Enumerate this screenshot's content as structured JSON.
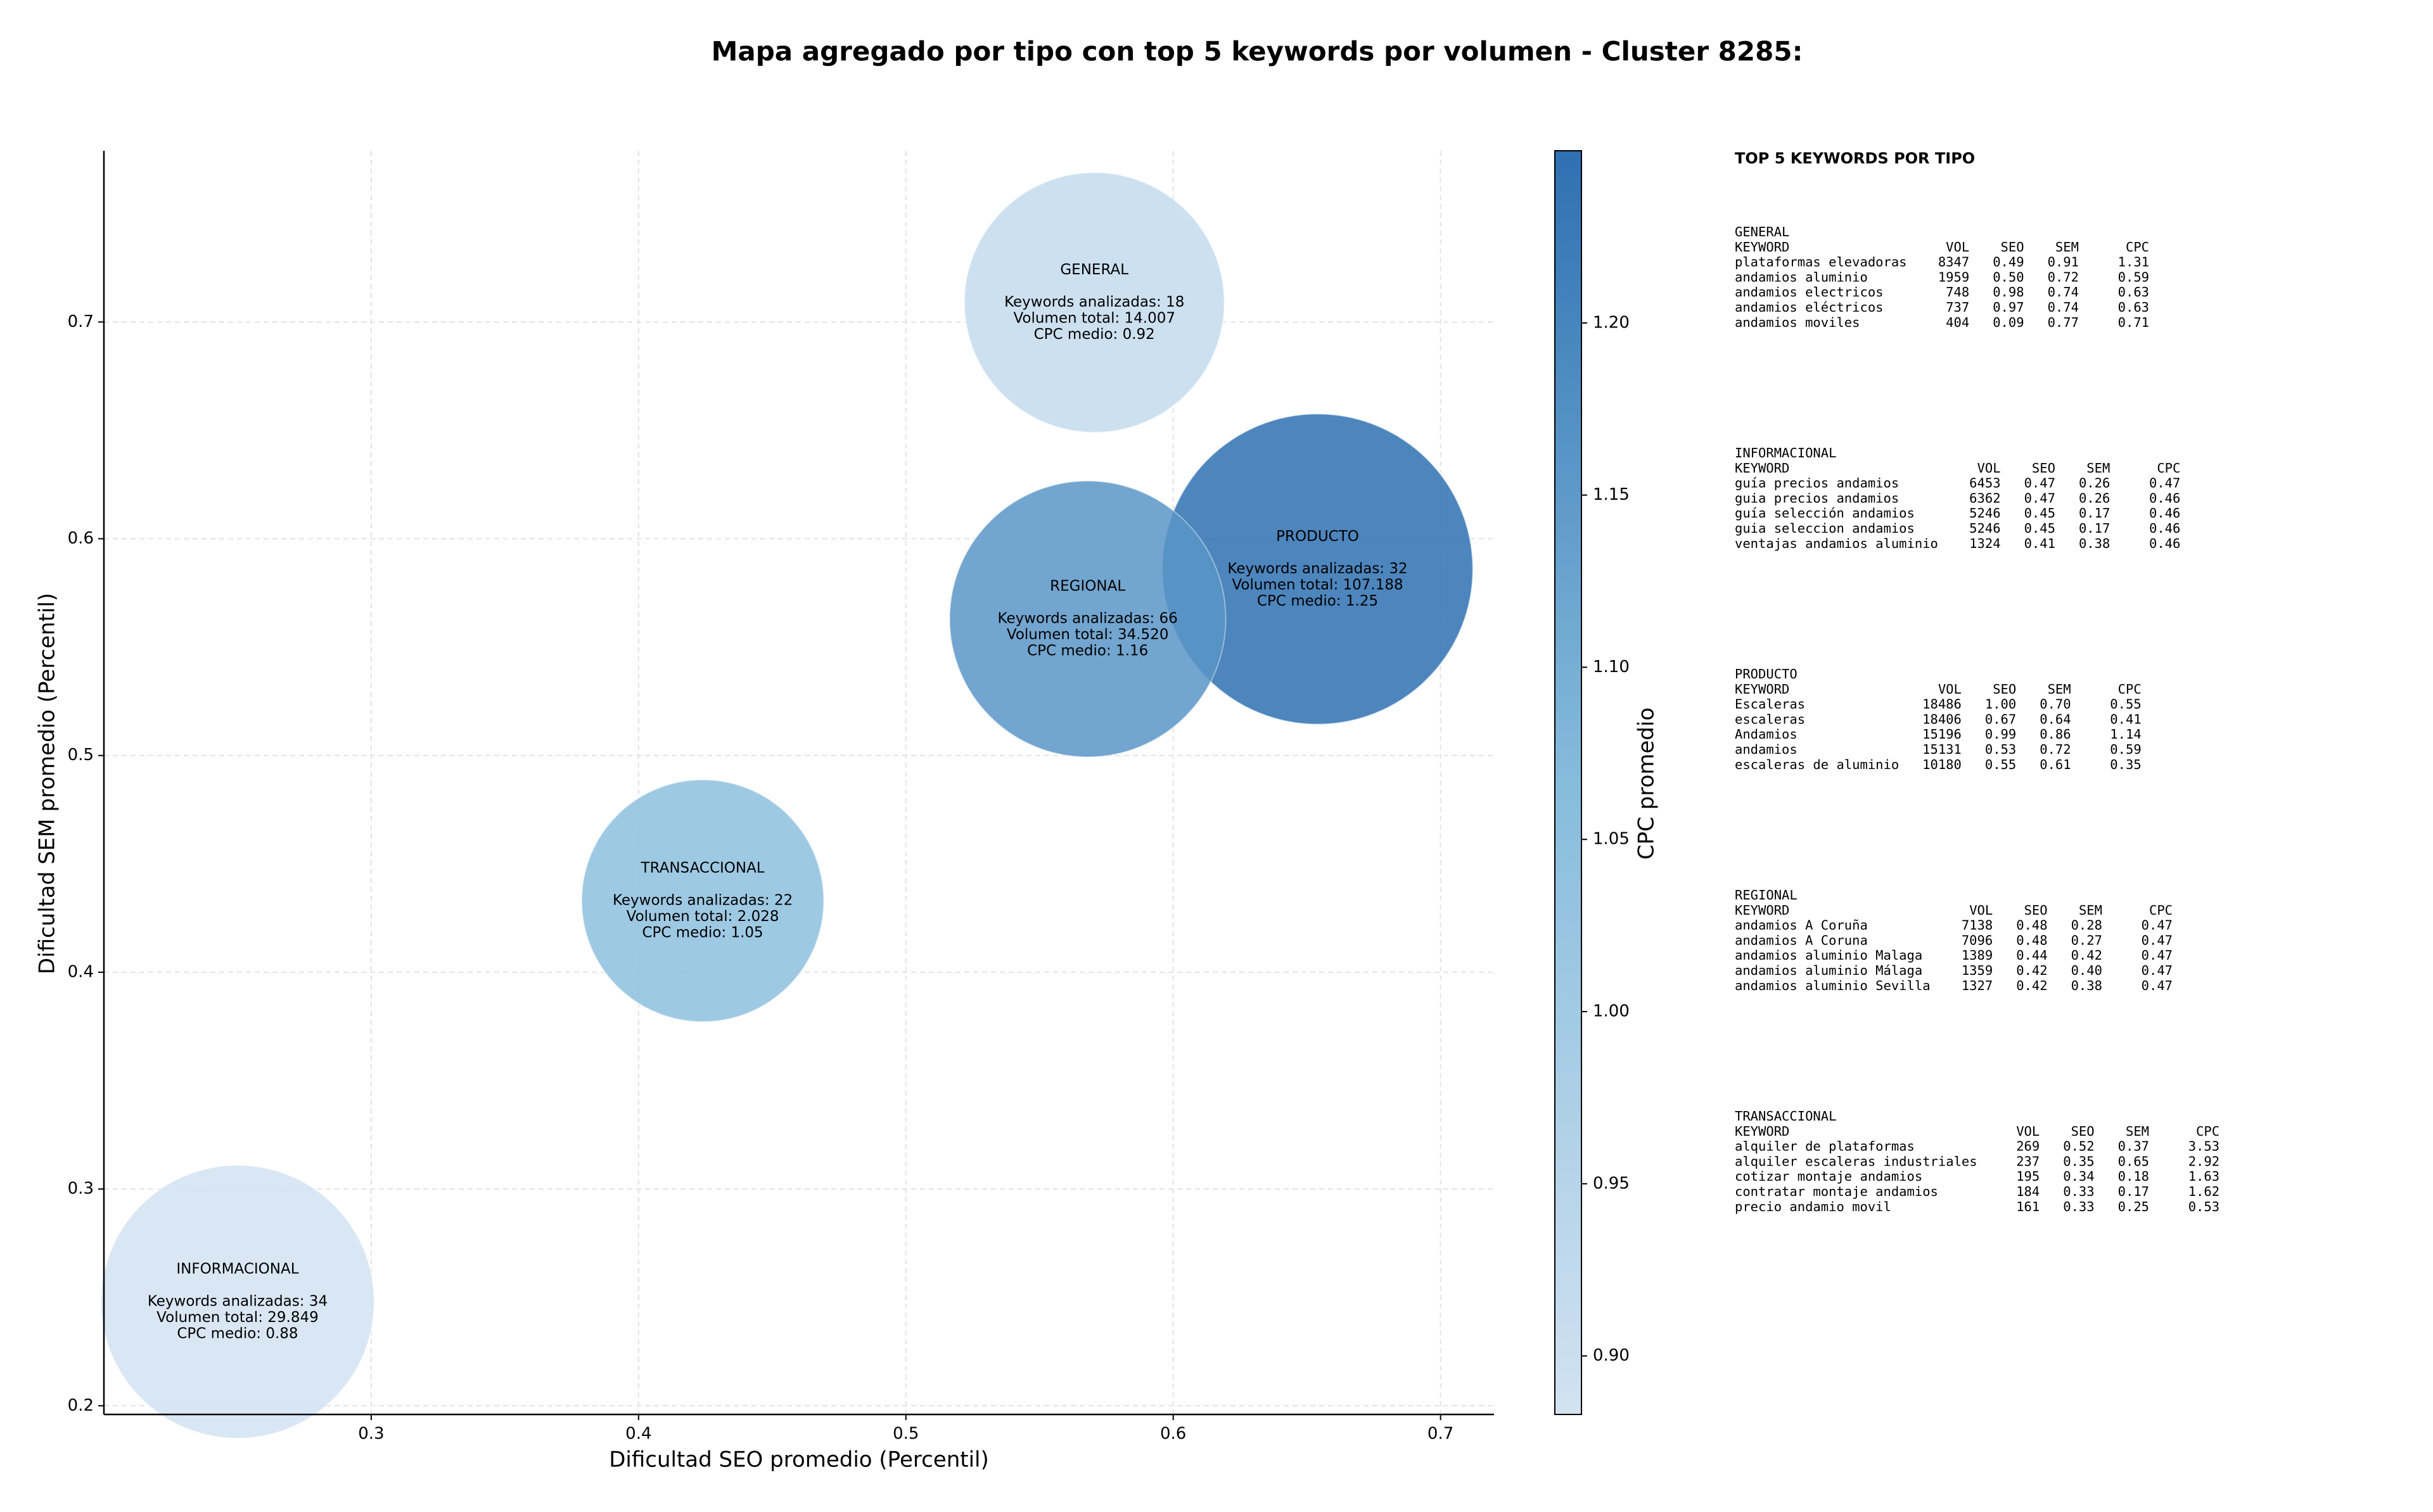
{
  "chart_data": {
    "type": "bubble",
    "title": "Mapa agregado por tipo con top 5 keywords por volumen - Cluster 8285:",
    "xlabel": "Dificultad SEO promedio (Percentil)",
    "ylabel": "Dificultad SEM promedio (Percentil)",
    "categories": [
      "GENERAL",
      "INFORMACIONAL",
      "PRODUCTO",
      "REGIONAL",
      "TRANSACCIONAL"
    ],
    "x": [
      0.5705,
      0.25,
      0.654,
      0.568,
      0.424
    ],
    "y": [
      0.709,
      0.248,
      0.586,
      0.563,
      0.433
    ],
    "sizes": [
      14007,
      29849,
      107188,
      34520,
      2028
    ],
    "cpc": [
      0.92,
      0.88,
      1.25,
      1.16,
      1.05
    ],
    "annotations": [
      [
        "Keywords analizadas: 18",
        "Volumen total: 14.007",
        "CPC medio: 0.92"
      ],
      [
        "Keywords analizadas: 34",
        "Volumen total: 29.849",
        "CPC medio: 0.88"
      ],
      [
        "Keywords analizadas: 32",
        "Volumen total: 107.188",
        "CPC medio: 1.25"
      ],
      [
        "Keywords analizadas: 66",
        "Volumen total: 34.520",
        "CPC medio: 1.16"
      ],
      [
        "Keywords analizadas: 22",
        "Volumen total: 2.028",
        "CPC medio: 1.05"
      ]
    ],
    "xlim": [
      0.2,
      0.72
    ],
    "ylim": [
      0.196,
      0.779
    ],
    "xticks": [
      0.3,
      0.4,
      0.5,
      0.6,
      0.7
    ],
    "yticks": [
      0.2,
      0.3,
      0.4,
      0.5,
      0.6,
      0.7
    ],
    "grid": true,
    "alpha": 0.85,
    "colorbar": {
      "label": "CPC promedio",
      "clim": [
        0.883,
        1.25
      ],
      "ticks": [
        {
          "value": 0.9,
          "label": "0.90"
        },
        0.95,
        {
          "value": 1.0,
          "label": "1.00"
        },
        1.05,
        {
          "value": 1.1,
          "label": "1.10"
        },
        1.15,
        {
          "value": 1.2,
          "label": "1.20"
        }
      ],
      "colormap": [
        "#d2e2f1",
        "#86bcdc",
        "#2e70b2"
      ]
    }
  },
  "side_panel": {
    "title": "TOP 5 KEYWORDS POR TIPO",
    "columns": [
      "KEYWORD",
      "VOL",
      "SEO",
      "SEM",
      "CPC"
    ],
    "blocks": [
      {
        "name": "GENERAL",
        "rows": [
          [
            "plataformas elevadoras",
            "8347",
            "0.49",
            "0.91",
            "1.31"
          ],
          [
            "andamios aluminio",
            "1959",
            "0.50",
            "0.72",
            "0.59"
          ],
          [
            "andamios electricos",
            "748",
            "0.98",
            "0.74",
            "0.63"
          ],
          [
            "andamios eléctricos",
            "737",
            "0.97",
            "0.74",
            "0.63"
          ],
          [
            "andamios moviles",
            "404",
            "0.09",
            "0.77",
            "0.71"
          ]
        ]
      },
      {
        "name": "INFORMACIONAL",
        "rows": [
          [
            "guía precios andamios",
            "6453",
            "0.47",
            "0.26",
            "0.47"
          ],
          [
            "guia precios andamios",
            "6362",
            "0.47",
            "0.26",
            "0.46"
          ],
          [
            "guía selección andamios",
            "5246",
            "0.45",
            "0.17",
            "0.46"
          ],
          [
            "guia seleccion andamios",
            "5246",
            "0.45",
            "0.17",
            "0.46"
          ],
          [
            "ventajas andamios aluminio",
            "1324",
            "0.41",
            "0.38",
            "0.46"
          ]
        ]
      },
      {
        "name": "PRODUCTO",
        "rows": [
          [
            "Escaleras",
            "18486",
            "1.00",
            "0.70",
            "0.55"
          ],
          [
            "escaleras",
            "18406",
            "0.67",
            "0.64",
            "0.41"
          ],
          [
            "Andamios",
            "15196",
            "0.99",
            "0.86",
            "1.14"
          ],
          [
            "andamios",
            "15131",
            "0.53",
            "0.72",
            "0.59"
          ],
          [
            "escaleras de aluminio",
            "10180",
            "0.55",
            "0.61",
            "0.35"
          ]
        ]
      },
      {
        "name": "REGIONAL",
        "rows": [
          [
            "andamios A Coruña",
            "7138",
            "0.48",
            "0.28",
            "0.47"
          ],
          [
            "andamios A Coruna",
            "7096",
            "0.48",
            "0.27",
            "0.47"
          ],
          [
            "andamios aluminio Malaga",
            "1389",
            "0.44",
            "0.42",
            "0.47"
          ],
          [
            "andamios aluminio Málaga",
            "1359",
            "0.42",
            "0.40",
            "0.47"
          ],
          [
            "andamios aluminio Sevilla",
            "1327",
            "0.42",
            "0.38",
            "0.47"
          ]
        ]
      },
      {
        "name": "TRANSACCIONAL",
        "rows": [
          [
            "alquiler de plataformas",
            "269",
            "0.52",
            "0.37",
            "3.53"
          ],
          [
            "alquiler escaleras industriales",
            "237",
            "0.35",
            "0.65",
            "2.92"
          ],
          [
            "cotizar montaje andamios",
            "195",
            "0.34",
            "0.18",
            "1.63"
          ],
          [
            "contratar montaje andamios",
            "184",
            "0.33",
            "0.17",
            "1.62"
          ],
          [
            "precio andamio movil",
            "161",
            "0.33",
            "0.25",
            "0.53"
          ]
        ]
      }
    ]
  }
}
